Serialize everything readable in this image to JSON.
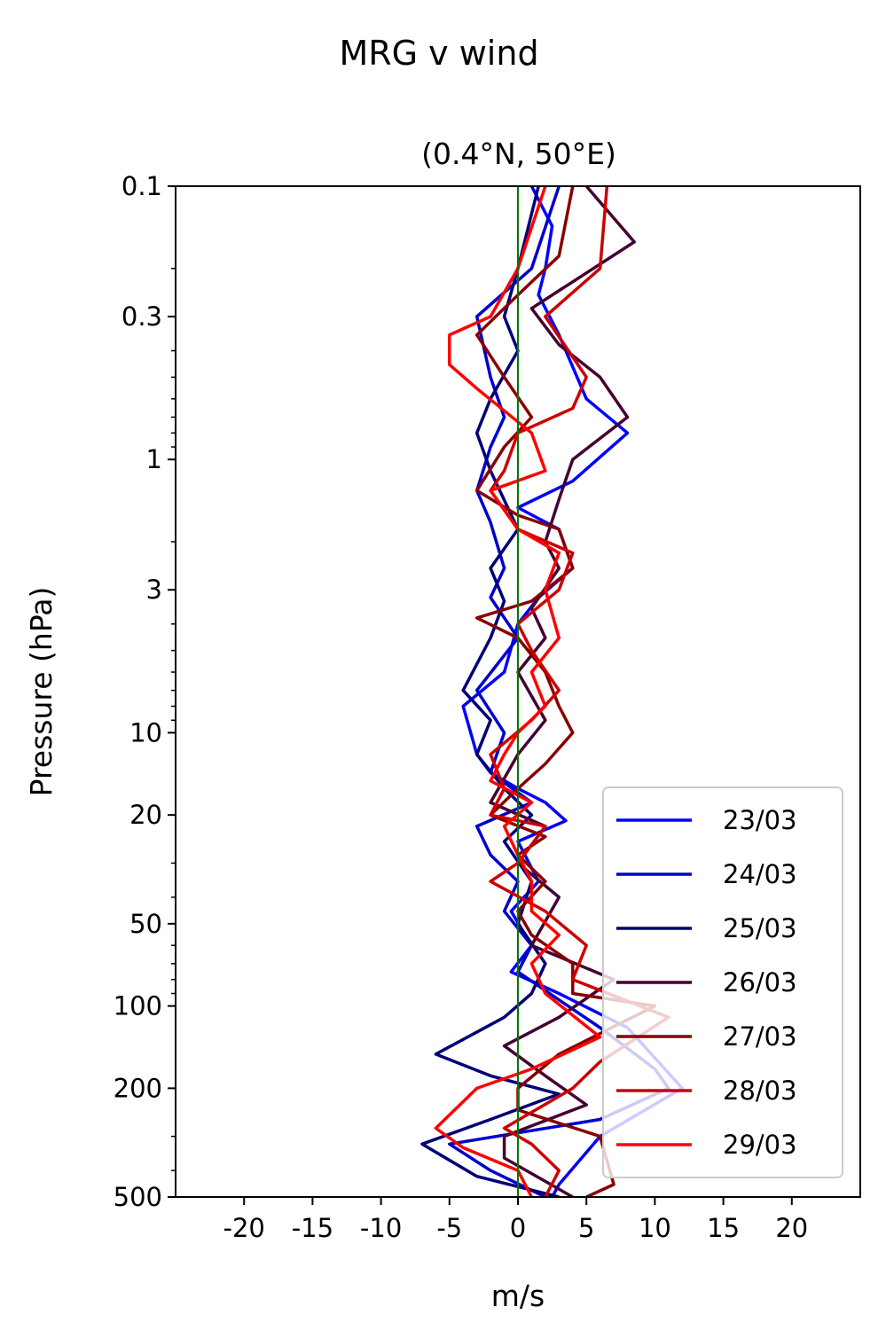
{
  "chart_data": {
    "type": "line",
    "title": "MRG v wind",
    "subtitle": "(0.4°N, 50°E)",
    "xlabel": "m/s",
    "ylabel": "Pressure (hPa)",
    "xlim": [
      -25,
      25
    ],
    "ylim": [
      500,
      0.1
    ],
    "yscale": "log",
    "x_ticks": [
      -20,
      -15,
      -10,
      -5,
      0,
      5,
      10,
      15,
      20
    ],
    "x_tick_labels": [
      "-20",
      "-15",
      "-10",
      "-5",
      "0",
      "5",
      "10",
      "15",
      "20"
    ],
    "y_ticks": [
      0.1,
      0.3,
      1,
      3,
      10,
      20,
      50,
      100,
      200,
      500
    ],
    "y_tick_labels": [
      "0.1",
      "0.3",
      "1",
      "3",
      "10",
      "20",
      "50",
      "100",
      "200",
      "500"
    ],
    "zero_line_color": "#007700",
    "grid": false,
    "legend_position": "lower-right",
    "series": [
      {
        "name": "23/03",
        "color": "#0000ff",
        "points": [
          [
            1,
            0.1
          ],
          [
            2.5,
            0.14
          ],
          [
            2,
            0.2
          ],
          [
            1.5,
            0.25
          ],
          [
            3,
            0.35
          ],
          [
            5,
            0.6
          ],
          [
            8,
            0.8
          ],
          [
            4,
            1.2
          ],
          [
            0,
            1.5
          ],
          [
            3,
            1.8
          ],
          [
            4,
            2.5
          ],
          [
            1.5,
            3.2
          ],
          [
            0,
            4
          ],
          [
            -1,
            6
          ],
          [
            -4,
            8
          ],
          [
            -3,
            12
          ],
          [
            -2,
            14
          ],
          [
            0,
            16
          ],
          [
            2,
            18
          ],
          [
            3.5,
            21
          ],
          [
            0,
            25
          ],
          [
            1.5,
            35
          ],
          [
            -0.5,
            45
          ],
          [
            1,
            60
          ],
          [
            -0.5,
            75
          ],
          [
            3,
            90
          ],
          [
            8,
            120
          ],
          [
            12,
            200
          ],
          [
            6,
            300
          ],
          [
            3,
            450
          ],
          [
            2.5,
            500
          ]
        ]
      },
      {
        "name": "24/03",
        "color": "#0000cc",
        "points": [
          [
            3,
            0.1
          ],
          [
            1,
            0.2
          ],
          [
            -3,
            0.3
          ],
          [
            -2,
            0.5
          ],
          [
            -1,
            0.7
          ],
          [
            -2,
            0.9
          ],
          [
            -3,
            1.3
          ],
          [
            -2,
            1.7
          ],
          [
            -1,
            2.5
          ],
          [
            -2,
            3.2
          ],
          [
            0,
            4.5
          ],
          [
            -3,
            7
          ],
          [
            -1,
            10
          ],
          [
            -2,
            14
          ],
          [
            1,
            18
          ],
          [
            -3,
            22
          ],
          [
            -2,
            28
          ],
          [
            0,
            35
          ],
          [
            -1,
            45
          ],
          [
            1,
            60
          ],
          [
            0,
            75
          ],
          [
            3,
            95
          ],
          [
            6,
            120
          ],
          [
            10,
            170
          ],
          [
            11,
            200
          ],
          [
            6,
            260
          ],
          [
            -5,
            320
          ],
          [
            -2,
            400
          ],
          [
            2,
            500
          ]
        ]
      },
      {
        "name": "25/03",
        "color": "#000077",
        "points": [
          [
            1.5,
            0.1
          ],
          [
            0,
            0.2
          ],
          [
            -1,
            0.3
          ],
          [
            0,
            0.4
          ],
          [
            -2,
            0.6
          ],
          [
            -3,
            0.8
          ],
          [
            -2,
            1.1
          ],
          [
            0,
            1.8
          ],
          [
            -2,
            2.5
          ],
          [
            -1,
            3.3
          ],
          [
            -2,
            4.5
          ],
          [
            -4,
            7
          ],
          [
            -2,
            9
          ],
          [
            -3,
            12
          ],
          [
            -1,
            16
          ],
          [
            1,
            20
          ],
          [
            -1,
            25
          ],
          [
            1,
            35
          ],
          [
            0,
            50
          ],
          [
            2,
            70
          ],
          [
            1,
            90
          ],
          [
            -1,
            110
          ],
          [
            -6,
            150
          ],
          [
            -2,
            180
          ],
          [
            3,
            210
          ],
          [
            -2,
            260
          ],
          [
            -7,
            320
          ],
          [
            -3,
            420
          ],
          [
            3,
            500
          ]
        ]
      },
      {
        "name": "26/03",
        "color": "#440033",
        "points": [
          [
            5,
            0.1
          ],
          [
            8.5,
            0.16
          ],
          [
            1,
            0.28
          ],
          [
            3,
            0.38
          ],
          [
            6,
            0.5
          ],
          [
            8,
            0.7
          ],
          [
            4,
            1.0
          ],
          [
            3,
            1.4
          ],
          [
            2,
            2
          ],
          [
            3,
            2.5
          ],
          [
            1,
            3.5
          ],
          [
            2,
            4.5
          ],
          [
            0,
            6
          ],
          [
            2,
            9
          ],
          [
            0,
            12
          ],
          [
            -2,
            18
          ],
          [
            2,
            22
          ],
          [
            0,
            30
          ],
          [
            3,
            40
          ],
          [
            1,
            60
          ],
          [
            7,
            80
          ],
          [
            3,
            110
          ],
          [
            -1,
            140
          ],
          [
            2,
            180
          ],
          [
            5,
            230
          ],
          [
            -1,
            300
          ],
          [
            -1,
            360
          ],
          [
            4,
            500
          ]
        ]
      },
      {
        "name": "27/03",
        "color": "#880000",
        "points": [
          [
            4,
            0.1
          ],
          [
            3,
            0.18
          ],
          [
            0,
            0.25
          ],
          [
            -3,
            0.35
          ],
          [
            -1,
            0.5
          ],
          [
            1,
            0.7
          ],
          [
            -1,
            0.9
          ],
          [
            -3,
            1.3
          ],
          [
            0,
            1.6
          ],
          [
            3,
            1.8
          ],
          [
            4,
            2.5
          ],
          [
            1,
            3.3
          ],
          [
            -3,
            3.8
          ],
          [
            0,
            4.5
          ],
          [
            2,
            6
          ],
          [
            3,
            8
          ],
          [
            4,
            10
          ],
          [
            2,
            13
          ],
          [
            0,
            16
          ],
          [
            -2,
            20
          ],
          [
            2,
            24
          ],
          [
            0,
            28
          ],
          [
            2,
            35
          ],
          [
            0,
            45
          ],
          [
            1,
            55
          ],
          [
            4,
            70
          ],
          [
            4,
            90
          ],
          [
            10,
            100
          ],
          [
            3,
            150
          ],
          [
            0,
            200
          ],
          [
            0,
            240
          ],
          [
            6,
            300
          ],
          [
            7,
            450
          ],
          [
            5,
            500
          ]
        ]
      },
      {
        "name": "28/03",
        "color": "#cc0000",
        "points": [
          [
            6.5,
            0.1
          ],
          [
            6,
            0.2
          ],
          [
            2,
            0.3
          ],
          [
            5,
            0.5
          ],
          [
            4,
            0.65
          ],
          [
            0,
            0.8
          ],
          [
            -1,
            1.1
          ],
          [
            -2,
            1.3
          ],
          [
            0,
            1.8
          ],
          [
            4,
            2.2
          ],
          [
            3,
            3
          ],
          [
            0,
            4
          ],
          [
            1,
            5
          ],
          [
            3,
            7
          ],
          [
            1,
            9
          ],
          [
            -2,
            12
          ],
          [
            -1,
            16
          ],
          [
            -2,
            20
          ],
          [
            2,
            22
          ],
          [
            0,
            30
          ],
          [
            -2,
            35
          ],
          [
            2,
            45
          ],
          [
            5,
            60
          ],
          [
            4,
            80
          ],
          [
            11,
            110
          ],
          [
            6,
            160
          ],
          [
            4,
            200
          ],
          [
            -1,
            280
          ],
          [
            1,
            320
          ],
          [
            3,
            400
          ],
          [
            2,
            500
          ]
        ]
      },
      {
        "name": "29/03",
        "color": "#ff0000",
        "points": [
          [
            2,
            0.1
          ],
          [
            0,
            0.2
          ],
          [
            -2,
            0.3
          ],
          [
            -5,
            0.35
          ],
          [
            -5,
            0.45
          ],
          [
            -3,
            0.55
          ],
          [
            1,
            0.8
          ],
          [
            2,
            1.1
          ],
          [
            -2,
            1.3
          ],
          [
            0,
            1.8
          ],
          [
            3,
            2.2
          ],
          [
            2,
            3
          ],
          [
            3,
            4.5
          ],
          [
            1,
            6
          ],
          [
            2,
            8
          ],
          [
            0,
            10
          ],
          [
            -1,
            12
          ],
          [
            -2,
            15
          ],
          [
            1,
            18
          ],
          [
            -1,
            22
          ],
          [
            0,
            28
          ],
          [
            1,
            35
          ],
          [
            1,
            45
          ],
          [
            3,
            55
          ],
          [
            1,
            70
          ],
          [
            2,
            90
          ],
          [
            6,
            130
          ],
          [
            1,
            170
          ],
          [
            -3,
            200
          ],
          [
            -6,
            280
          ],
          [
            -4,
            330
          ],
          [
            0,
            400
          ],
          [
            1,
            500
          ]
        ]
      }
    ]
  }
}
